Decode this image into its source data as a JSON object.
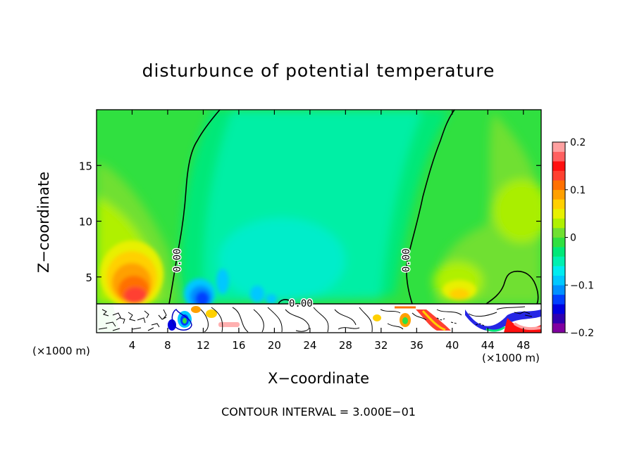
{
  "chart_data": {
    "type": "contour",
    "title": "disturbunce of potential temperature",
    "xlabel": "X−coordinate",
    "ylabel": "Z−coordinate",
    "x_unit": "(×1000 m)",
    "x_unit_right": "(×1000 m)",
    "xlim": [
      0,
      50
    ],
    "ylim": [
      0,
      20
    ],
    "x_ticks": [
      4,
      8,
      12,
      16,
      20,
      24,
      28,
      32,
      36,
      40,
      44,
      48
    ],
    "y_ticks": [
      5,
      10,
      15
    ],
    "contour_interval_text": "CONTOUR INTERVAL = 3.000E−01",
    "contour_labels": [
      "0.00",
      "0.00",
      "0.00"
    ],
    "colorbar": {
      "min": -0.2,
      "max": 0.2,
      "tick_values": [
        0.2,
        0.1,
        0,
        -0.1,
        -0.2
      ],
      "tick_labels": [
        "0.2",
        "0.1",
        "0",
        "−0.1",
        "−0.2"
      ],
      "colors": [
        "#8000a0",
        "#3000b0",
        "#0000e0",
        "#0040ff",
        "#0090ff",
        "#00c8ff",
        "#00ecf0",
        "#00f0b0",
        "#00e878",
        "#30e040",
        "#70e030",
        "#b0f000",
        "#e8f000",
        "#ffd000",
        "#ffa000",
        "#ff7000",
        "#ff4030",
        "#ff1010",
        "#ff6060",
        "#ffa0a0"
      ]
    },
    "features": {
      "warm_anomaly_peak": {
        "x": 5,
        "z": 3.5,
        "value": 0.15
      },
      "cold_anomaly_peak": {
        "x": 11,
        "z": 3,
        "value": -0.12
      },
      "warm_anomaly_right": {
        "x": 40,
        "z": 4,
        "value": 0.08
      },
      "surface_layer_top_z": 2.7
    }
  }
}
